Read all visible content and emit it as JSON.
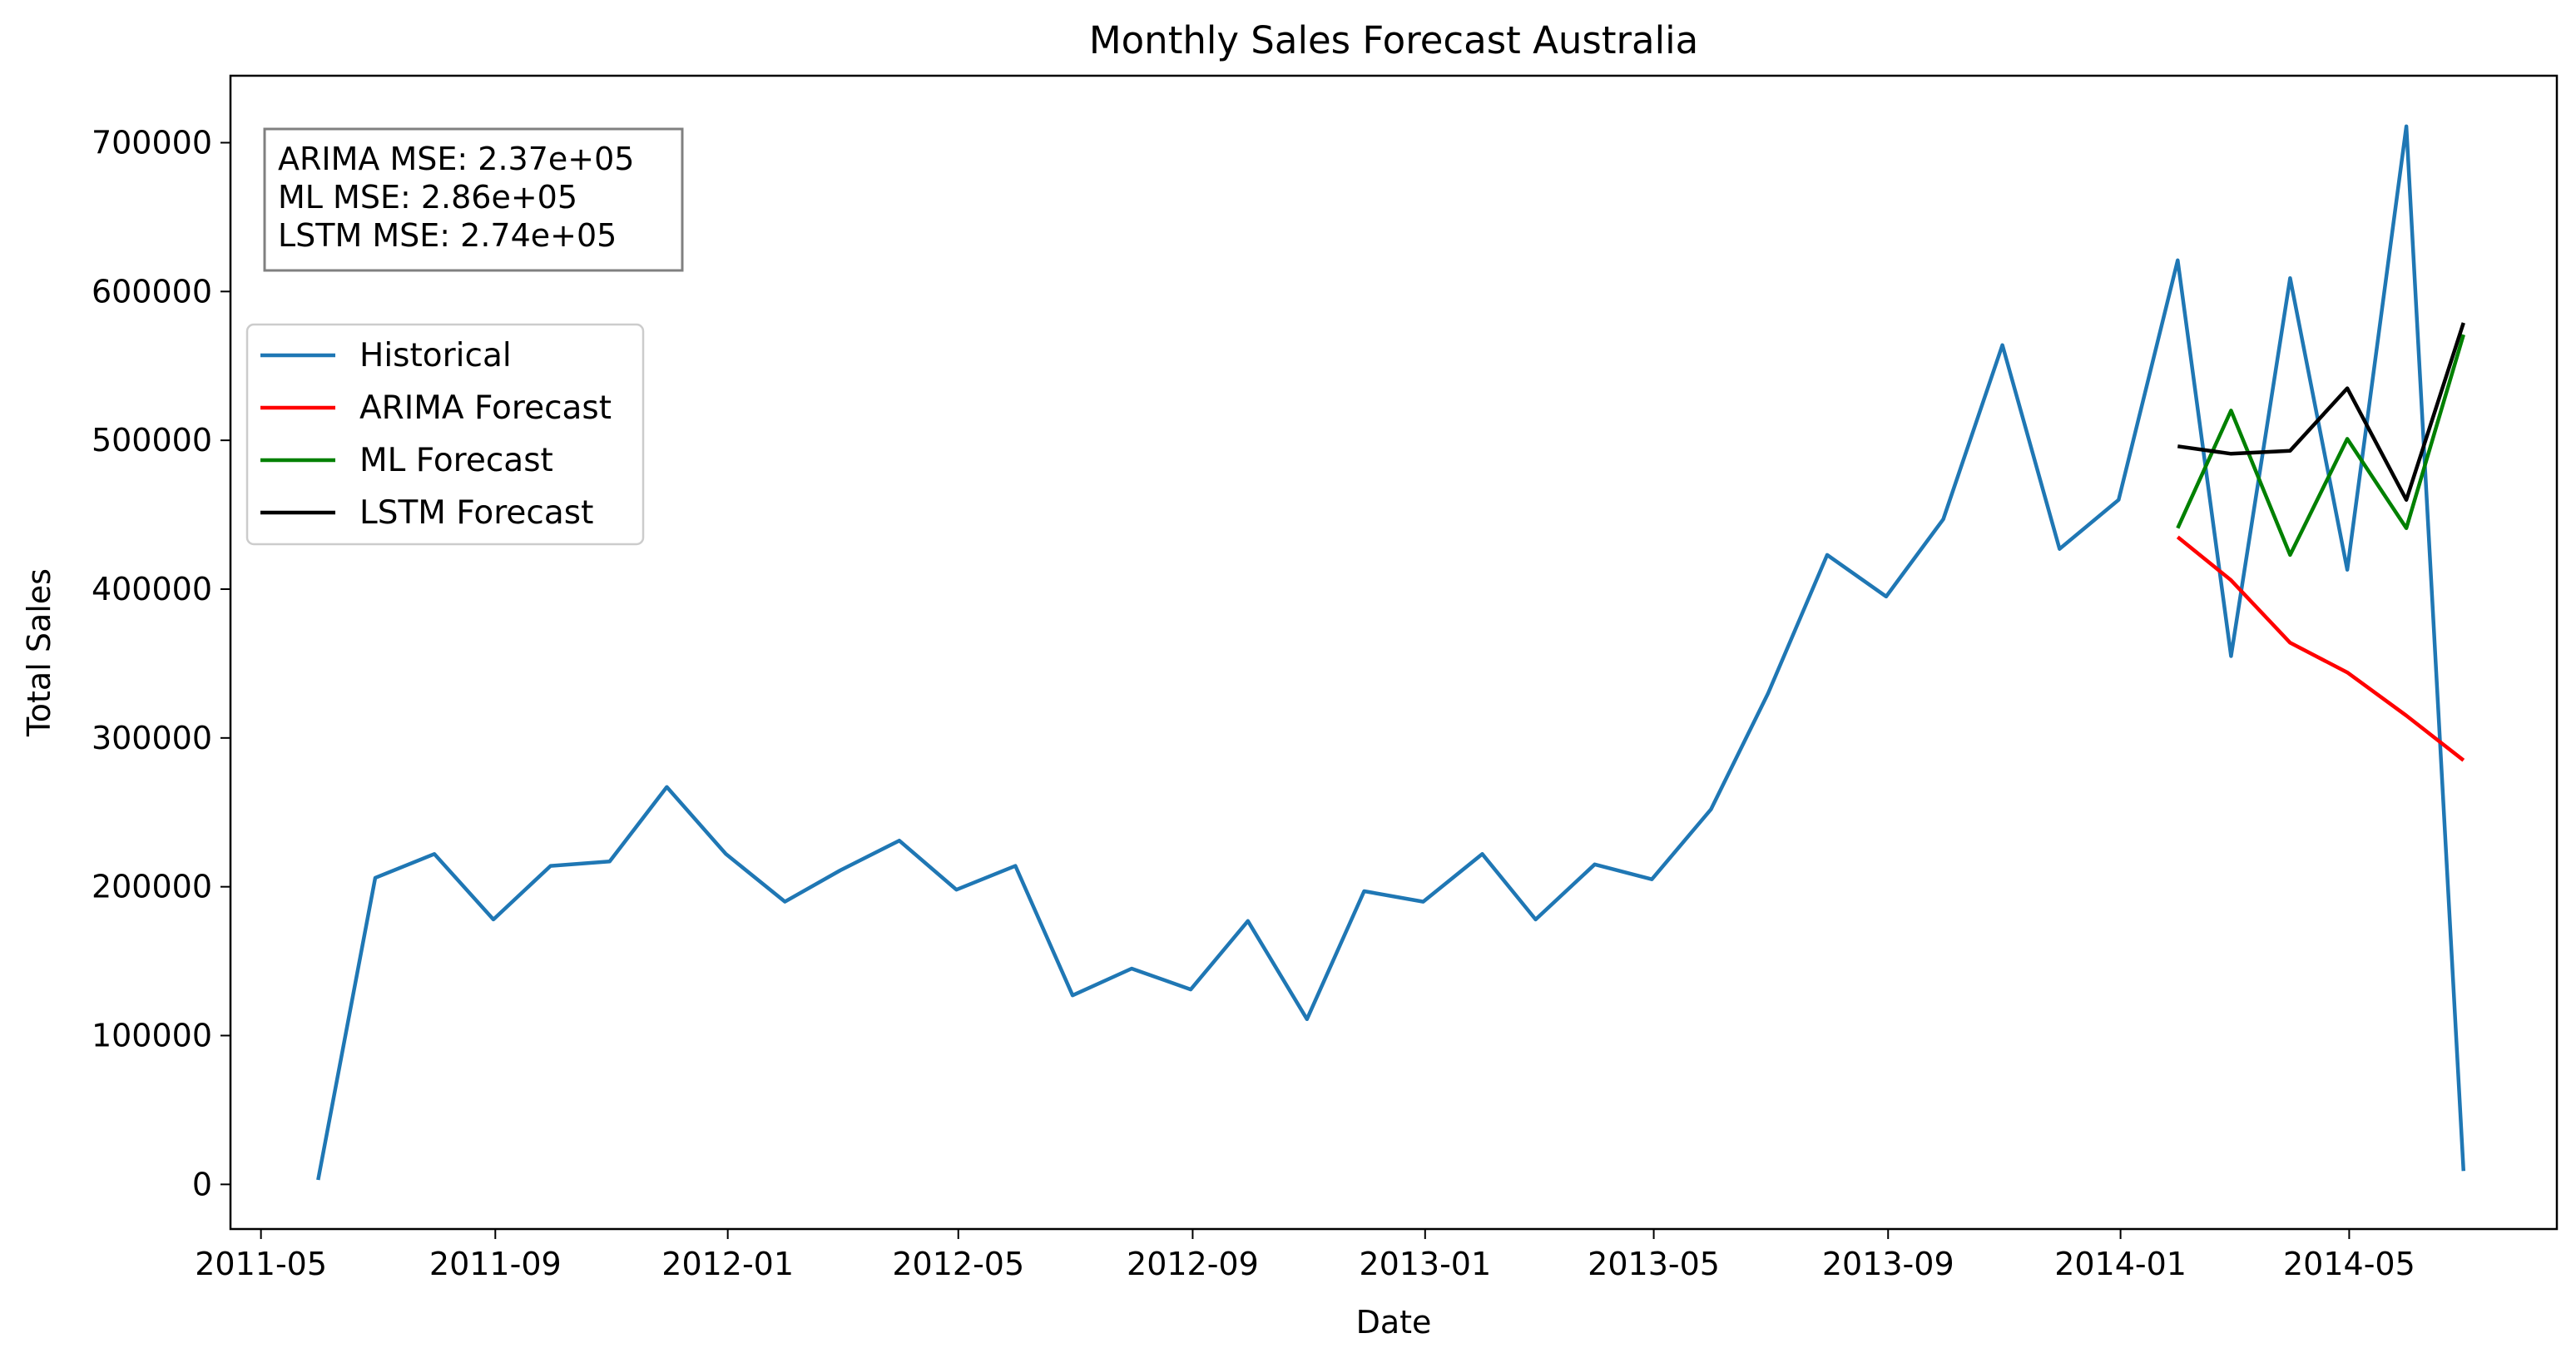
{
  "chart_data": {
    "type": "line",
    "title": "Monthly Sales Forecast Australia",
    "xlabel": "Date",
    "ylabel": "Total Sales",
    "xlim": [
      "2011-04-15",
      "2014-08-18"
    ],
    "ylim": [
      -30000,
      745000
    ],
    "x_ticks": [
      "2011-05",
      "2011-09",
      "2012-01",
      "2012-05",
      "2012-09",
      "2013-01",
      "2013-05",
      "2013-09",
      "2014-01",
      "2014-05"
    ],
    "y_ticks": [
      0,
      100000,
      200000,
      300000,
      400000,
      500000,
      600000,
      700000
    ],
    "grid": false,
    "legend_position": "upper-left",
    "annotation": [
      "ARIMA MSE: 2.37e+05",
      "ML MSE: 2.86e+05",
      "LSTM MSE: 2.74e+05"
    ],
    "series": [
      {
        "name": "Historical",
        "color": "#1f77b4",
        "x": [
          "2011-05-31",
          "2011-06-30",
          "2011-07-31",
          "2011-08-31",
          "2011-09-30",
          "2011-10-31",
          "2011-11-30",
          "2011-12-31",
          "2012-01-31",
          "2012-02-29",
          "2012-03-31",
          "2012-04-30",
          "2012-05-31",
          "2012-06-30",
          "2012-07-31",
          "2012-08-31",
          "2012-09-30",
          "2012-10-31",
          "2012-11-30",
          "2012-12-31",
          "2013-01-31",
          "2013-02-28",
          "2013-03-31",
          "2013-04-30",
          "2013-05-31",
          "2013-06-30",
          "2013-07-31",
          "2013-08-31",
          "2013-09-30",
          "2013-10-31",
          "2013-11-30",
          "2013-12-31",
          "2014-01-31",
          "2014-02-28",
          "2014-03-31",
          "2014-04-30",
          "2014-05-31",
          "2014-06-30"
        ],
        "values": [
          3000,
          206000,
          222000,
          178000,
          214000,
          217000,
          267000,
          222000,
          190000,
          211000,
          231000,
          198000,
          214000,
          127000,
          145000,
          131000,
          177000,
          111000,
          197000,
          190000,
          222000,
          178000,
          215000,
          205000,
          252000,
          330000,
          423000,
          395000,
          447000,
          564000,
          427000,
          460000,
          621000,
          355000,
          609000,
          413000,
          711000,
          9000
        ]
      },
      {
        "name": "ARIMA Forecast",
        "color": "#ff0000",
        "x": [
          "2014-01-31",
          "2014-02-28",
          "2014-03-31",
          "2014-04-30",
          "2014-05-31",
          "2014-06-30"
        ],
        "values": [
          435000,
          406000,
          364000,
          344000,
          315000,
          285000
        ]
      },
      {
        "name": "ML Forecast",
        "color": "#008000",
        "x": [
          "2014-01-31",
          "2014-02-28",
          "2014-03-31",
          "2014-04-30",
          "2014-05-31",
          "2014-06-30"
        ],
        "values": [
          441000,
          520000,
          423000,
          501000,
          441000,
          571000
        ]
      },
      {
        "name": "LSTM Forecast",
        "color": "#000000",
        "x": [
          "2014-01-31",
          "2014-02-28",
          "2014-03-31",
          "2014-04-30",
          "2014-05-31",
          "2014-06-30"
        ],
        "values": [
          496000,
          491000,
          493000,
          535000,
          460000,
          579000
        ]
      }
    ]
  }
}
